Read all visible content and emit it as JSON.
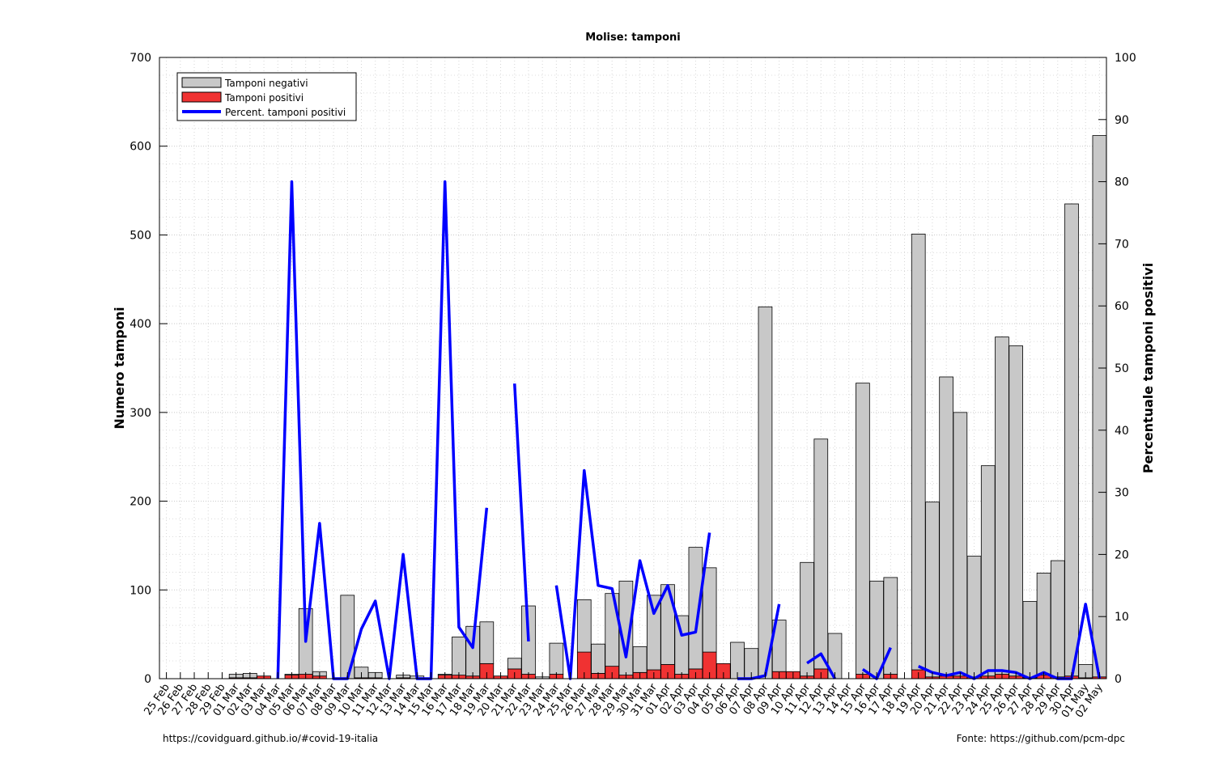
{
  "chart_data": {
    "type": "bar",
    "title": "Molise: tamponi",
    "ylabel": "Numero tamponi",
    "y2label": "Percentuale tamponi positivi",
    "ylim": [
      0,
      700
    ],
    "y2lim": [
      0,
      100
    ],
    "yticks": [
      0,
      100,
      200,
      300,
      400,
      500,
      600,
      700
    ],
    "y2ticks": [
      0,
      10,
      20,
      30,
      40,
      50,
      60,
      70,
      80,
      90,
      100
    ],
    "grid": true,
    "legend_position": "top-left",
    "stacked": true,
    "categories": [
      "25 Feb",
      "26 Feb",
      "27 Feb",
      "28 Feb",
      "29 Feb",
      "01 Mar",
      "02 Mar",
      "03 Mar",
      "04 Mar",
      "05 Mar",
      "06 Mar",
      "07 Mar",
      "08 Mar",
      "09 Mar",
      "10 Mar",
      "11 Mar",
      "12 Mar",
      "13 Mar",
      "14 Mar",
      "15 Mar",
      "16 Mar",
      "17 Mar",
      "18 Mar",
      "19 Mar",
      "20 Mar",
      "21 Mar",
      "22 Mar",
      "23 Mar",
      "24 Mar",
      "25 Mar",
      "26 Mar",
      "27 Mar",
      "28 Mar",
      "29 Mar",
      "30 Mar",
      "31 Mar",
      "01 Apr",
      "02 Apr",
      "03 Apr",
      "04 Apr",
      "05 Apr",
      "06 Apr",
      "07 Apr",
      "08 Apr",
      "09 Apr",
      "10 Apr",
      "11 Apr",
      "12 Apr",
      "13 Apr",
      "14 Apr",
      "15 Apr",
      "16 Apr",
      "17 Apr",
      "18 Apr",
      "19 Apr",
      "20 Apr",
      "21 Apr",
      "22 Apr",
      "23 Apr",
      "24 Apr",
      "25 Apr",
      "26 Apr",
      "27 Apr",
      "28 Apr",
      "29 Apr",
      "30 Apr",
      "01 May",
      "02 May"
    ],
    "series": [
      {
        "name": "Tamponi negativi",
        "kind": "bar",
        "color": "#c8c8c8",
        "values": [
          0,
          0,
          0,
          0,
          0,
          4,
          5,
          0,
          0,
          1,
          74,
          5,
          0,
          94,
          12,
          6,
          0,
          3,
          3,
          0,
          1,
          43,
          56,
          47,
          0,
          12,
          77,
          2,
          35,
          0,
          59,
          33,
          82,
          106,
          29,
          84,
          90,
          66,
          137,
          95,
          0,
          41,
          34,
          419,
          58,
          0,
          128,
          259,
          51,
          0,
          328,
          110,
          109,
          0,
          491,
          197,
          337,
          297,
          136,
          237,
          380,
          372,
          86,
          115,
          131,
          532,
          15,
          610
        ]
      },
      {
        "name": "Tamponi positivi",
        "kind": "bar",
        "color": "#f03232",
        "values": [
          0,
          0,
          0,
          0,
          0,
          1,
          1,
          3,
          0,
          4,
          5,
          3,
          0,
          0,
          1,
          1,
          0,
          1,
          0,
          0,
          4,
          4,
          3,
          17,
          3,
          11,
          5,
          0,
          5,
          0,
          30,
          6,
          14,
          4,
          7,
          10,
          16,
          5,
          11,
          30,
          17,
          0,
          0,
          0,
          8,
          8,
          3,
          11,
          0,
          0,
          5,
          0,
          5,
          0,
          10,
          2,
          3,
          3,
          2,
          3,
          5,
          3,
          1,
          4,
          2,
          3,
          1,
          2
        ]
      },
      {
        "name": "Percent. tamponi positivi",
        "kind": "line",
        "axis": "right",
        "color": "#0000ff",
        "values": [
          null,
          null,
          null,
          null,
          null,
          null,
          0,
          null,
          0,
          80,
          6,
          25,
          0,
          0,
          8,
          12.5,
          0,
          20,
          0,
          0,
          80,
          8.3,
          5,
          27.5,
          null,
          47.5,
          6,
          null,
          15,
          0,
          33.5,
          15,
          14.5,
          3.5,
          19,
          10.5,
          15,
          7,
          7.5,
          23.5,
          null,
          0,
          0,
          0.5,
          12,
          null,
          2.5,
          4,
          0,
          null,
          1.5,
          0,
          5,
          null,
          2,
          1,
          0.5,
          1,
          0,
          1.3,
          1.3,
          1,
          0,
          1,
          0,
          0,
          12,
          0
        ]
      }
    ]
  },
  "footer": {
    "left": "https://covidguard.github.io/#covid-19-italia",
    "right": "Fonte: https://github.com/pcm-dpc"
  }
}
